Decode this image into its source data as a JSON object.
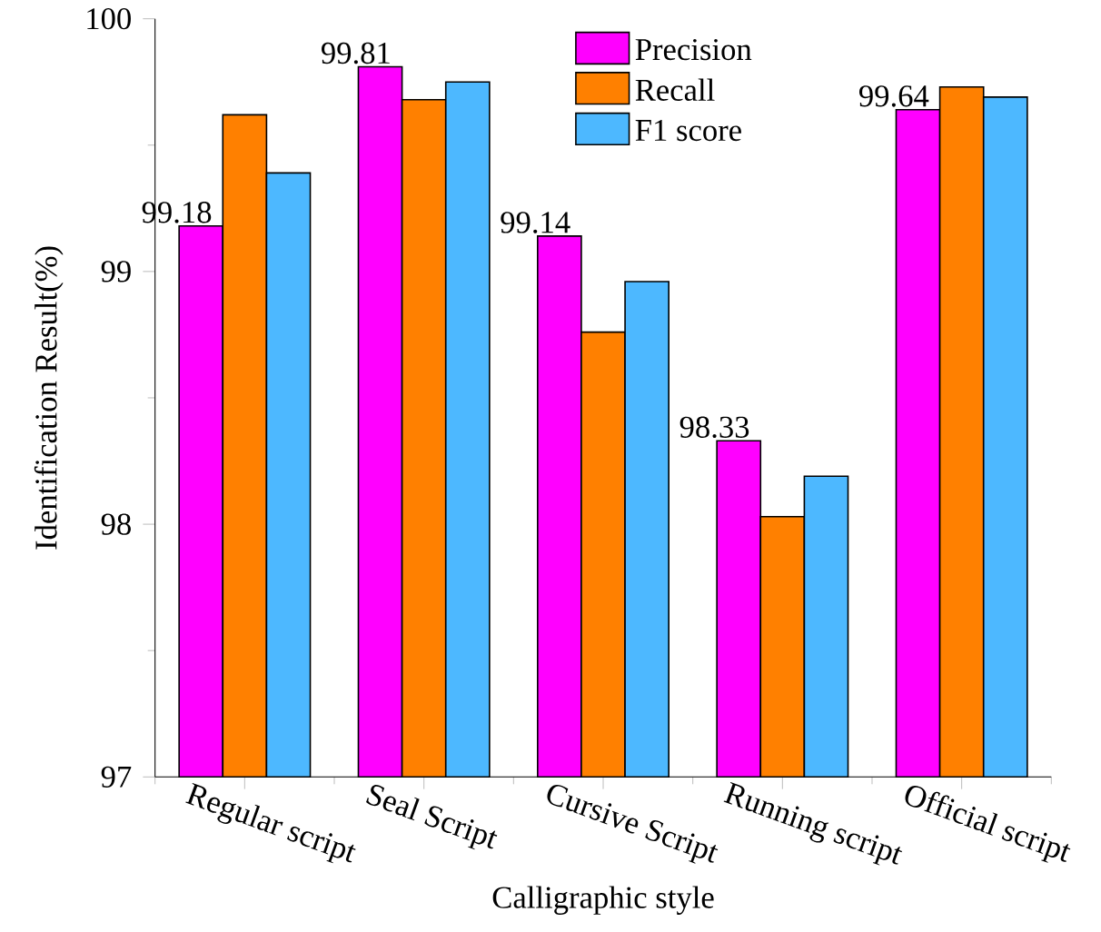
{
  "chart_data": {
    "type": "bar",
    "xlabel": "Calligraphic style",
    "ylabel": "Identification Result(%)",
    "categories": [
      "Regular script",
      "Seal Script",
      "Cursive Script",
      "Running script",
      "Official script"
    ],
    "series": [
      {
        "name": "Precision",
        "color": "#ff00ff",
        "values": [
          99.18,
          99.81,
          99.14,
          98.33,
          99.64
        ],
        "value_labels": [
          "99.18",
          "99.81",
          "99.14",
          "98.33",
          "99.64"
        ]
      },
      {
        "name": "Recall",
        "color": "#ff8000",
        "values": [
          99.62,
          99.68,
          98.76,
          98.03,
          99.73
        ]
      },
      {
        "name": "F1 score",
        "color": "#4db8ff",
        "values": [
          99.39,
          99.75,
          98.96,
          98.19,
          99.69
        ]
      }
    ],
    "ylim": [
      97,
      100
    ],
    "yticks": [
      97,
      98,
      99,
      100
    ],
    "grid": false,
    "legend": "top right"
  }
}
